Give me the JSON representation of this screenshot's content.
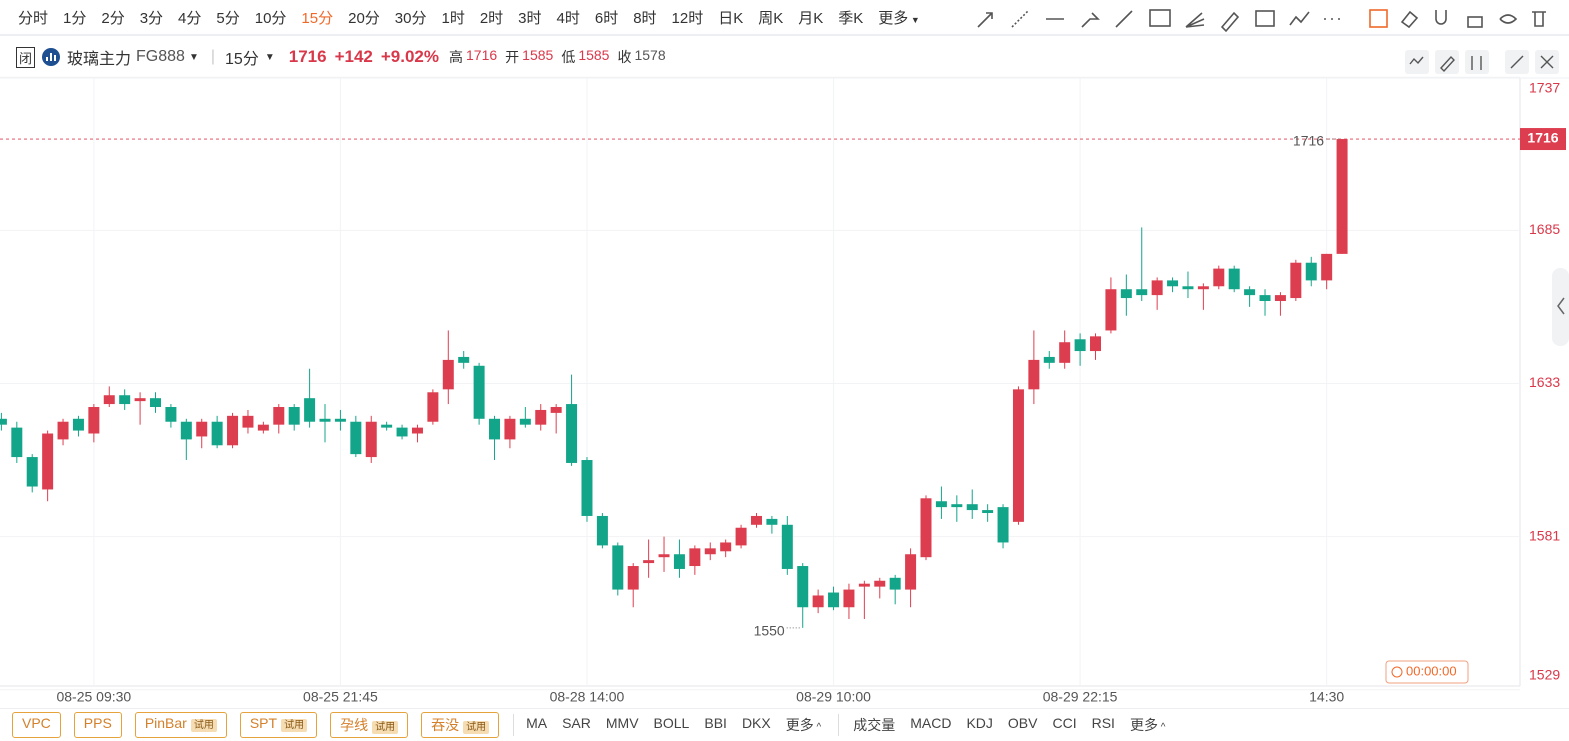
{
  "toolbar": {
    "periods": [
      "分时",
      "1分",
      "2分",
      "3分",
      "4分",
      "5分",
      "10分",
      "15分",
      "20分",
      "30分",
      "1时",
      "2时",
      "3时",
      "4时",
      "6时",
      "8时",
      "12时",
      "日K",
      "周K",
      "月K",
      "季K",
      "更多"
    ]
  },
  "header": {
    "badge": "闭",
    "symbol": "玻璃主力",
    "code": "FG888",
    "period": "15分",
    "price": "1716",
    "change": "+142",
    "change_pct": "+9.02%",
    "stats": [
      {
        "label": "高",
        "value": "1716"
      },
      {
        "label": "开",
        "value": "1585"
      },
      {
        "label": "低",
        "value": "1585"
      },
      {
        "label": "收",
        "value": "1578"
      }
    ]
  },
  "timer": "00:00:00",
  "footer": {
    "patterns": [
      {
        "name": "VPC"
      },
      {
        "name": "PPS"
      },
      {
        "name": "PinBar",
        "tag": "试用"
      },
      {
        "name": "SPT",
        "tag": "试用"
      },
      {
        "name": "孕线",
        "tag": "试用"
      },
      {
        "name": "吞没",
        "tag": "试用"
      }
    ],
    "main_indicators": [
      "MA",
      "SAR",
      "MMV",
      "BOLL",
      "BBI",
      "DKX",
      "更多"
    ],
    "sub_indicators": [
      "成交量",
      "MACD",
      "KDJ",
      "OBV",
      "CCI",
      "RSI",
      "更多"
    ]
  },
  "chart_data": {
    "type": "candlestick",
    "categories": [
      null,
      null,
      null,
      null,
      null,
      null,
      "08-25 09:30",
      null,
      null,
      null,
      null,
      null,
      null,
      null,
      null,
      null,
      null,
      null,
      null,
      null,
      null,
      null,
      "08-25 21:45",
      null,
      null,
      null,
      null,
      null,
      null,
      null,
      null,
      null,
      null,
      null,
      null,
      null,
      null,
      null,
      "08-28 14:00",
      null,
      null,
      null,
      null,
      null,
      null,
      null,
      null,
      null,
      null,
      null,
      null,
      null,
      null,
      null,
      "08-29 10:00",
      null,
      null,
      null,
      null,
      null,
      null,
      null,
      null,
      null,
      null,
      null,
      null,
      null,
      null,
      null,
      "08-29 22:15",
      null,
      null,
      null,
      null,
      null,
      null,
      null,
      null,
      null,
      null,
      null,
      null,
      null,
      null,
      null,
      "14:30",
      null
    ],
    "open": [
      1621,
      1618,
      1608,
      1597,
      1614,
      1621,
      1616,
      1626,
      1629,
      1627,
      1628,
      1625,
      1620,
      1615,
      1620,
      1612,
      1618,
      1617,
      1619,
      1625,
      1628,
      1621,
      1621,
      1620,
      1608,
      1619,
      1618,
      1616,
      1620,
      1631,
      1642,
      1639,
      1621,
      1614,
      1621,
      1619,
      1623,
      1626,
      1607,
      1588,
      1578,
      1563,
      1572,
      1574,
      1575,
      1571,
      1575,
      1576,
      1578,
      1585,
      1587,
      1585,
      1571,
      1557,
      1562,
      1557,
      1564,
      1564,
      1567,
      1563,
      1574,
      1593,
      1592,
      1592,
      1590,
      1591,
      1586,
      1631,
      1642,
      1640,
      1648,
      1644,
      1651,
      1665,
      1665,
      1663,
      1668,
      1666,
      1665,
      1666,
      1672,
      1665,
      1663,
      1661,
      1662,
      1674,
      1668,
      1677
    ],
    "high": [
      1623,
      1620,
      1609,
      1617,
      1621,
      1622,
      1626,
      1632,
      1631,
      1630,
      1630,
      1626,
      1621,
      1621,
      1622,
      1623,
      1624,
      1620,
      1626,
      1626,
      1638,
      1626,
      1624,
      1622,
      1622,
      1620,
      1619,
      1619,
      1631,
      1651,
      1644,
      1640,
      1622,
      1622,
      1625,
      1626,
      1626,
      1636,
      1608,
      1589,
      1579,
      1572,
      1580,
      1581,
      1580,
      1578,
      1579,
      1580,
      1585,
      1589,
      1588,
      1588,
      1572,
      1563,
      1564,
      1565,
      1566,
      1567,
      1568,
      1577,
      1595,
      1598,
      1595,
      1597,
      1592,
      1592,
      1632,
      1651,
      1644,
      1651,
      1650,
      1650,
      1669,
      1670,
      1686,
      1669,
      1669,
      1671,
      1667,
      1673,
      1673,
      1666,
      1665,
      1664,
      1675,
      1676,
      1677,
      1716
    ],
    "low": [
      1617,
      1606,
      1596,
      1593,
      1612,
      1615,
      1613,
      1625,
      1624,
      1619,
      1623,
      1618,
      1607,
      1611,
      1611,
      1611,
      1616,
      1616,
      1616,
      1617,
      1618,
      1613,
      1617,
      1608,
      1606,
      1617,
      1614,
      1613,
      1619,
      1626,
      1638,
      1619,
      1607,
      1611,
      1618,
      1617,
      1616,
      1605,
      1586,
      1577,
      1561,
      1557,
      1567,
      1569,
      1567,
      1568,
      1573,
      1574,
      1577,
      1584,
      1582,
      1568,
      1550,
      1555,
      1556,
      1553,
      1553,
      1560,
      1558,
      1557,
      1573,
      1587,
      1586,
      1587,
      1586,
      1577,
      1585,
      1626,
      1638,
      1638,
      1639,
      1641,
      1650,
      1656,
      1661,
      1658,
      1664,
      1662,
      1658,
      1665,
      1664,
      1659,
      1656,
      1656,
      1661,
      1666,
      1665,
      1677
    ],
    "close": [
      1619,
      1608,
      1598,
      1616,
      1620,
      1617,
      1625,
      1629,
      1626,
      1628,
      1625,
      1620,
      1614,
      1620,
      1612,
      1622,
      1622,
      1619,
      1625,
      1619,
      1620,
      1620,
      1620,
      1609,
      1620,
      1618,
      1615,
      1618,
      1630,
      1641,
      1640,
      1621,
      1614,
      1621,
      1619,
      1624,
      1625,
      1606,
      1588,
      1578,
      1563,
      1571,
      1573,
      1575,
      1570,
      1577,
      1577,
      1579,
      1584,
      1588,
      1585,
      1570,
      1557,
      1561,
      1557,
      1563,
      1565,
      1566,
      1563,
      1575,
      1594,
      1591,
      1591,
      1590,
      1589,
      1579,
      1631,
      1641,
      1640,
      1647,
      1644,
      1649,
      1665,
      1662,
      1663,
      1668,
      1666,
      1665,
      1666,
      1672,
      1665,
      1663,
      1661,
      1663,
      1674,
      1668,
      1677,
      1716
    ],
    "up_color": "#dd3e4f",
    "down_color": "#13a58a",
    "ylim": [
      1529,
      1737
    ],
    "yticks": [
      1529,
      1581,
      1633,
      1685,
      1737
    ],
    "grid": true,
    "last_price": 1716,
    "high_label": 1716,
    "low_label": 1550
  }
}
